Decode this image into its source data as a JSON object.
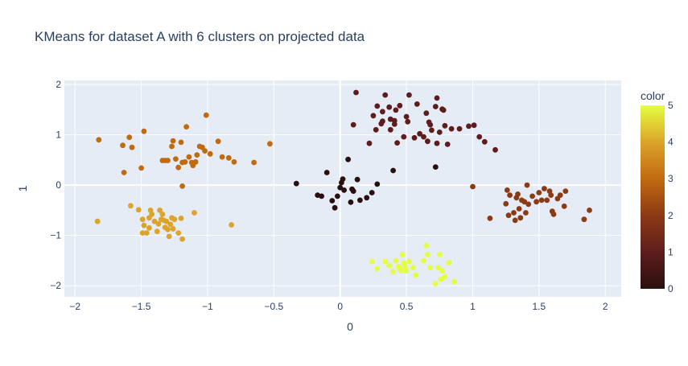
{
  "chart_data": {
    "type": "scatter",
    "title": "KMeans for dataset A with 6 clusters on projected data",
    "xlabel": "0",
    "ylabel": "1",
    "xlim": [
      -2.08,
      2.12
    ],
    "ylim": [
      -2.22,
      2.08
    ],
    "x_ticks": [
      -2,
      -1.5,
      -1,
      -0.5,
      0,
      0.5,
      1,
      1.5,
      2
    ],
    "x_tick_labels": [
      "−2",
      "−1.5",
      "−1",
      "−0.5",
      "0",
      "0.5",
      "1",
      "1.5",
      "2"
    ],
    "y_ticks": [
      -2,
      -1,
      0,
      1,
      2
    ],
    "y_tick_labels": [
      "−2",
      "−1",
      "0",
      "1",
      "2"
    ],
    "grid": true,
    "colorbar": {
      "title": "color",
      "min": 0,
      "max": 5,
      "ticks": [
        0,
        1,
        2,
        3,
        4,
        5
      ],
      "tick_labels": [
        "0",
        "1",
        "2",
        "3",
        "4",
        "5"
      ],
      "colorscale": [
        "#2a0f0f",
        "#5e1d1d",
        "#8c3a14",
        "#c26a10",
        "#dca42a",
        "#e4ff41"
      ]
    },
    "colors": {
      "plot_bg": "#e5ecf6",
      "grid": "#ffffff",
      "text": "#2a3f5f"
    },
    "series": [
      {
        "color_value": 0,
        "points": [
          [
            -0.33,
            0.03
          ],
          [
            -0.17,
            -0.2
          ],
          [
            -0.14,
            -0.22
          ],
          [
            -0.1,
            0.25
          ],
          [
            -0.06,
            -0.31
          ],
          [
            -0.04,
            -0.45
          ],
          [
            -0.02,
            -0.22
          ],
          [
            0.0,
            -0.05
          ],
          [
            0.01,
            0.05
          ],
          [
            0.02,
            0.12
          ],
          [
            0.03,
            -0.1
          ],
          [
            0.06,
            0.51
          ],
          [
            0.08,
            -0.34
          ],
          [
            0.09,
            -0.08
          ],
          [
            0.1,
            -0.12
          ],
          [
            0.13,
            0.11
          ],
          [
            0.15,
            -0.3
          ],
          [
            0.2,
            -0.25
          ],
          [
            0.24,
            -0.15
          ],
          [
            0.28,
            0.02
          ],
          [
            0.4,
            0.29
          ],
          [
            0.72,
            0.36
          ]
        ]
      },
      {
        "color_value": 1,
        "points": [
          [
            0.12,
            1.84
          ],
          [
            0.1,
            1.2
          ],
          [
            0.22,
            0.83
          ],
          [
            0.25,
            1.38
          ],
          [
            0.27,
            1.1
          ],
          [
            0.28,
            1.57
          ],
          [
            0.31,
            1.22
          ],
          [
            0.32,
            1.27
          ],
          [
            0.32,
            1.46
          ],
          [
            0.34,
            1.79
          ],
          [
            0.37,
            1.55
          ],
          [
            0.38,
            1.31
          ],
          [
            0.38,
            1.1
          ],
          [
            0.41,
            1.21
          ],
          [
            0.41,
            1.28
          ],
          [
            0.42,
            1.49
          ],
          [
            0.45,
            1.58
          ],
          [
            0.48,
            0.96
          ],
          [
            0.5,
            1.36
          ],
          [
            0.51,
            1.26
          ],
          [
            0.52,
            1.79
          ],
          [
            0.56,
            0.94
          ],
          [
            0.58,
            1.61
          ],
          [
            0.6,
            1.02
          ],
          [
            0.63,
            0.96
          ],
          [
            0.65,
            1.43
          ],
          [
            0.66,
            0.87
          ],
          [
            0.67,
            1.25
          ],
          [
            0.68,
            1.2
          ],
          [
            0.69,
            1.09
          ],
          [
            0.72,
            1.56
          ],
          [
            0.73,
            1.73
          ],
          [
            0.75,
            1.05
          ],
          [
            0.77,
            1.51
          ],
          [
            0.78,
            1.49
          ],
          [
            0.79,
            1.18
          ],
          [
            0.81,
            0.81
          ],
          [
            0.84,
            1.12
          ],
          [
            0.9,
            1.12
          ],
          [
            0.97,
            1.17
          ],
          [
            1.01,
            1.19
          ],
          [
            1.05,
            0.96
          ],
          [
            1.09,
            0.86
          ],
          [
            1.17,
            0.7
          ],
          [
            0.43,
            0.84
          ],
          [
            0.73,
            0.83
          ]
        ]
      },
      {
        "color_value": 2,
        "points": [
          [
            1.0,
            -0.03
          ],
          [
            1.13,
            -0.66
          ],
          [
            1.25,
            -0.37
          ],
          [
            1.26,
            -0.1
          ],
          [
            1.27,
            -0.6
          ],
          [
            1.28,
            -0.2
          ],
          [
            1.31,
            -0.55
          ],
          [
            1.32,
            -0.7
          ],
          [
            1.33,
            -0.25
          ],
          [
            1.34,
            -0.18
          ],
          [
            1.35,
            -0.47
          ],
          [
            1.36,
            -0.65
          ],
          [
            1.37,
            -0.3
          ],
          [
            1.39,
            -0.33
          ],
          [
            1.4,
            -0.55
          ],
          [
            1.41,
            0.0
          ],
          [
            1.42,
            -0.38
          ],
          [
            1.45,
            -0.22
          ],
          [
            1.48,
            -0.33
          ],
          [
            1.5,
            -0.15
          ],
          [
            1.52,
            -0.3
          ],
          [
            1.54,
            -0.07
          ],
          [
            1.56,
            -0.3
          ],
          [
            1.58,
            -0.12
          ],
          [
            1.59,
            -0.2
          ],
          [
            1.6,
            -0.52
          ],
          [
            1.61,
            -0.58
          ],
          [
            1.64,
            -0.27
          ],
          [
            1.66,
            -0.2
          ],
          [
            1.69,
            -0.42
          ],
          [
            1.7,
            -0.12
          ],
          [
            1.84,
            -0.68
          ],
          [
            1.88,
            -0.5
          ]
        ]
      },
      {
        "color_value": 3,
        "points": [
          [
            -1.82,
            0.9
          ],
          [
            -1.64,
            0.79
          ],
          [
            -1.63,
            0.25
          ],
          [
            -1.59,
            0.95
          ],
          [
            -1.57,
            0.75
          ],
          [
            -1.5,
            0.34
          ],
          [
            -1.48,
            1.07
          ],
          [
            -1.34,
            0.49
          ],
          [
            -1.32,
            0.49
          ],
          [
            -1.3,
            0.49
          ],
          [
            -1.27,
            0.77
          ],
          [
            -1.26,
            0.88
          ],
          [
            -1.24,
            0.52
          ],
          [
            -1.22,
            0.35
          ],
          [
            -1.2,
            0.85
          ],
          [
            -1.19,
            0.45
          ],
          [
            -1.17,
            0.46
          ],
          [
            -1.16,
            1.16
          ],
          [
            -1.14,
            0.56
          ],
          [
            -1.12,
            0.45
          ],
          [
            -1.11,
            0.39
          ],
          [
            -1.09,
            0.46
          ],
          [
            -1.08,
            0.6
          ],
          [
            -1.06,
            0.77
          ],
          [
            -1.04,
            0.75
          ],
          [
            -1.02,
            0.68
          ],
          [
            -1.01,
            1.39
          ],
          [
            -0.98,
            0.62
          ],
          [
            -0.92,
            0.87
          ],
          [
            -0.89,
            0.56
          ],
          [
            -0.84,
            0.54
          ],
          [
            -0.8,
            0.46
          ],
          [
            -0.65,
            0.45
          ],
          [
            -0.53,
            0.82
          ],
          [
            -1.19,
            -0.02
          ]
        ]
      },
      {
        "color_value": 4,
        "points": [
          [
            -1.83,
            -0.72
          ],
          [
            -1.58,
            -0.41
          ],
          [
            -1.52,
            -0.49
          ],
          [
            -1.49,
            -0.68
          ],
          [
            -1.49,
            -0.95
          ],
          [
            -1.48,
            -0.8
          ],
          [
            -1.46,
            -0.95
          ],
          [
            -1.44,
            -0.85
          ],
          [
            -1.44,
            -0.65
          ],
          [
            -1.43,
            -0.5
          ],
          [
            -1.42,
            -0.58
          ],
          [
            -1.4,
            -0.72
          ],
          [
            -1.38,
            -0.92
          ],
          [
            -1.37,
            -0.77
          ],
          [
            -1.36,
            -0.5
          ],
          [
            -1.35,
            -0.68
          ],
          [
            -1.34,
            -0.58
          ],
          [
            -1.33,
            -0.7
          ],
          [
            -1.32,
            -0.84
          ],
          [
            -1.31,
            -0.72
          ],
          [
            -1.3,
            -0.88
          ],
          [
            -1.29,
            -1.02
          ],
          [
            -1.28,
            -0.78
          ],
          [
            -1.27,
            -0.65
          ],
          [
            -1.26,
            -0.87
          ],
          [
            -1.25,
            -0.68
          ],
          [
            -1.22,
            -0.95
          ],
          [
            -1.2,
            -0.66
          ],
          [
            -1.19,
            -1.07
          ],
          [
            -1.1,
            -0.55
          ],
          [
            -0.82,
            -0.79
          ]
        ]
      },
      {
        "color_value": 5,
        "points": [
          [
            0.24,
            -1.52
          ],
          [
            0.28,
            -1.66
          ],
          [
            0.34,
            -1.52
          ],
          [
            0.37,
            -1.6
          ],
          [
            0.4,
            -1.72
          ],
          [
            0.42,
            -1.5
          ],
          [
            0.44,
            -1.62
          ],
          [
            0.45,
            -1.66
          ],
          [
            0.46,
            -1.7
          ],
          [
            0.47,
            -1.38
          ],
          [
            0.48,
            -1.55
          ],
          [
            0.49,
            -1.62
          ],
          [
            0.5,
            -1.7
          ],
          [
            0.52,
            -1.52
          ],
          [
            0.55,
            -1.64
          ],
          [
            0.57,
            -1.79
          ],
          [
            0.63,
            -1.5
          ],
          [
            0.65,
            -1.2
          ],
          [
            0.66,
            -1.38
          ],
          [
            0.68,
            -1.64
          ],
          [
            0.72,
            -1.96
          ],
          [
            0.74,
            -1.64
          ],
          [
            0.75,
            -1.38
          ],
          [
            0.76,
            -1.87
          ],
          [
            0.77,
            -1.7
          ],
          [
            0.79,
            -1.82
          ],
          [
            0.82,
            -1.54
          ],
          [
            0.86,
            -1.92
          ]
        ]
      }
    ]
  }
}
